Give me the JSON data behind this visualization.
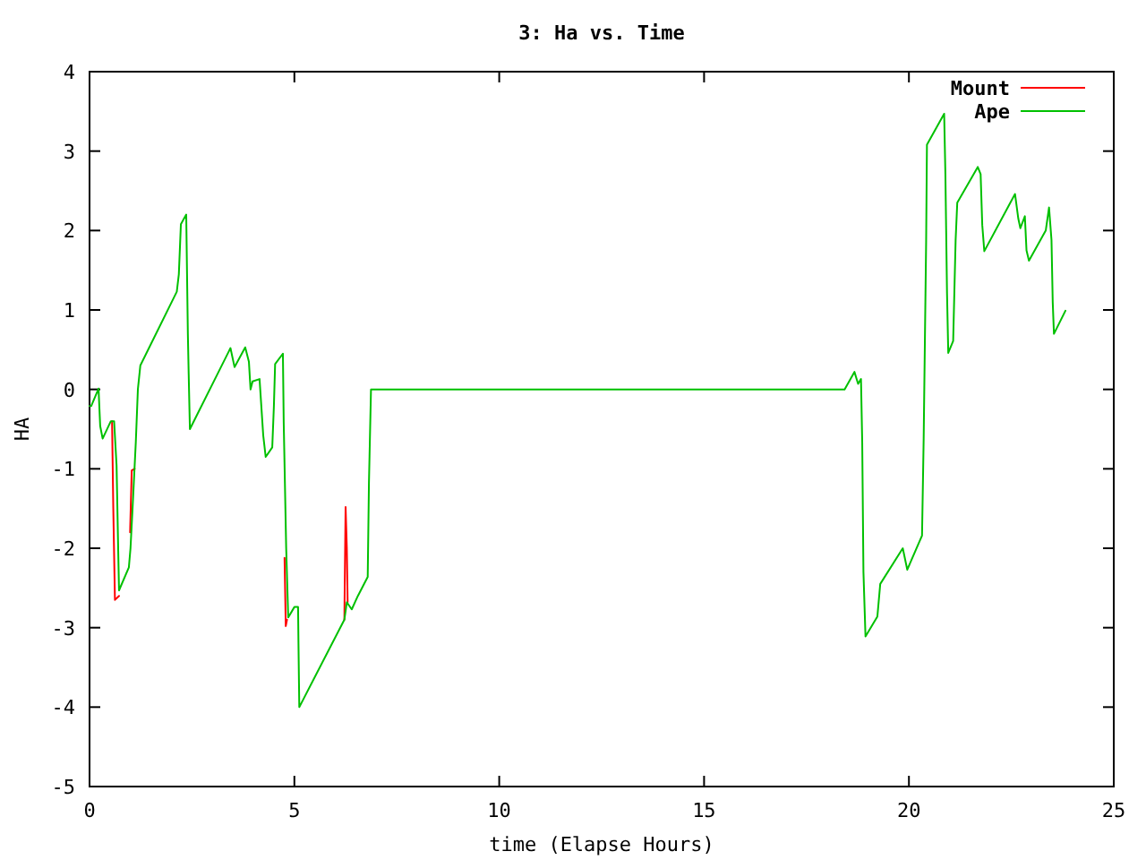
{
  "chart_data": {
    "type": "line",
    "title": "3: Ha vs. Time",
    "xlabel": "time (Elapse Hours)",
    "ylabel": "HA",
    "xlim": [
      0,
      25
    ],
    "xticks": [
      0,
      5,
      10,
      15,
      20,
      25
    ],
    "ylim": [
      -5,
      4
    ],
    "yticks": [
      -5,
      -4,
      -3,
      -2,
      -1,
      0,
      1,
      2,
      3,
      4
    ],
    "grid": false,
    "legend": "top right",
    "marker": "none",
    "line_style": "solid",
    "series": [
      {
        "name": "Mount",
        "color": "#ff0000",
        "x": [
          0.55,
          0.58,
          0.62,
          0.72,
          0.85,
          0.99,
          1.03,
          1.1,
          2.0,
          4.73,
          4.76,
          4.79,
          4.82,
          5.5,
          6.22,
          6.25,
          6.28,
          6.3
        ],
        "values": [
          -0.4,
          -1.5,
          -2.65,
          -2.6,
          null,
          -1.8,
          -1.02,
          -1.0,
          null,
          null,
          -2.12,
          -2.98,
          -2.9,
          null,
          -2.9,
          -1.48,
          -2.0,
          -2.68
        ]
      },
      {
        "name": "Ape",
        "color": "#00c000",
        "x": [
          0,
          0.04,
          0.22,
          0.26,
          0.32,
          0.52,
          0.6,
          0.66,
          0.7,
          0.72,
          0.96,
          1.0,
          1.05,
          1.13,
          1.18,
          1.24,
          2.13,
          2.18,
          2.23,
          2.36,
          2.4,
          2.42,
          2.45,
          3.44,
          3.54,
          3.8,
          3.89,
          3.93,
          3.98,
          4.15,
          4.24,
          4.3,
          4.46,
          4.5,
          4.53,
          4.72,
          4.74,
          4.8,
          4.85,
          5.0,
          5.09,
          5.1,
          5.12,
          6.22,
          6.28,
          6.4,
          6.55,
          6.79,
          6.82,
          6.87,
          18.43,
          18.67,
          18.76,
          18.83,
          18.86,
          18.89,
          18.94,
          19.23,
          19.3,
          19.85,
          19.96,
          20.32,
          20.36,
          20.42,
          20.44,
          20.86,
          20.89,
          20.93,
          20.96,
          21.08,
          21.14,
          21.18,
          21.68,
          21.75,
          21.79,
          21.84,
          22.59,
          22.67,
          22.72,
          22.83,
          22.87,
          22.93,
          23.34,
          23.42,
          23.48,
          23.51,
          23.54,
          23.82
        ],
        "values": [
          -0.21,
          -0.21,
          0.01,
          -0.46,
          -0.62,
          -0.4,
          -0.4,
          -0.96,
          -2.03,
          -2.53,
          -2.24,
          -2.0,
          -1.5,
          -0.66,
          0.0,
          0.3,
          1.23,
          1.45,
          2.08,
          2.2,
          0.7,
          0.2,
          -0.5,
          0.52,
          0.28,
          0.53,
          0.35,
          0.0,
          0.1,
          0.13,
          -0.58,
          -0.85,
          -0.73,
          -0.21,
          0.32,
          0.45,
          -0.42,
          -2.0,
          -2.87,
          -2.74,
          -2.74,
          -3.2,
          -4.0,
          -2.9,
          -2.68,
          -2.77,
          -2.6,
          -2.36,
          -1.18,
          0,
          0,
          0.22,
          0.07,
          0.13,
          -0.66,
          -2.3,
          -3.11,
          -2.86,
          -2.45,
          -2.0,
          -2.27,
          -1.84,
          -0.62,
          1.85,
          3.08,
          3.47,
          2.71,
          1.21,
          0.46,
          0.61,
          1.88,
          2.35,
          2.8,
          2.71,
          2.07,
          1.74,
          2.46,
          2.15,
          2.03,
          2.18,
          1.75,
          1.62,
          2.0,
          2.29,
          1.88,
          1.1,
          0.7,
          0.99
        ]
      }
    ]
  }
}
